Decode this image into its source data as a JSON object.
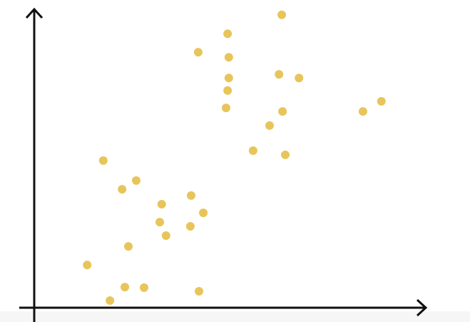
{
  "chart_data": {
    "type": "scatter",
    "color": "#e8c55a",
    "xlim": [
      0,
      100
    ],
    "ylim": [
      0,
      100
    ],
    "x": [
      63.1,
      49.3,
      41.8,
      49.6,
      49.6,
      62.4,
      67.5,
      49.3,
      48.9,
      63.3,
      83.8,
      88.5,
      60,
      55.8,
      64,
      17.6,
      26,
      22.4,
      40,
      32.5,
      43.1,
      32,
      39.8,
      33.6,
      24,
      13.5,
      23.1,
      28,
      42,
      19.3
    ],
    "values": [
      97.9,
      91.6,
      85.4,
      83.7,
      76.8,
      78,
      76.8,
      72.6,
      66.8,
      65.6,
      65.6,
      69,
      60.9,
      52.5,
      51.1,
      49.2,
      42.5,
      39.6,
      37.5,
      34.6,
      31.7,
      28.6,
      27.2,
      24.1,
      20.5,
      14.3,
      6.9,
      6.7,
      5.5,
      2.4
    ]
  }
}
